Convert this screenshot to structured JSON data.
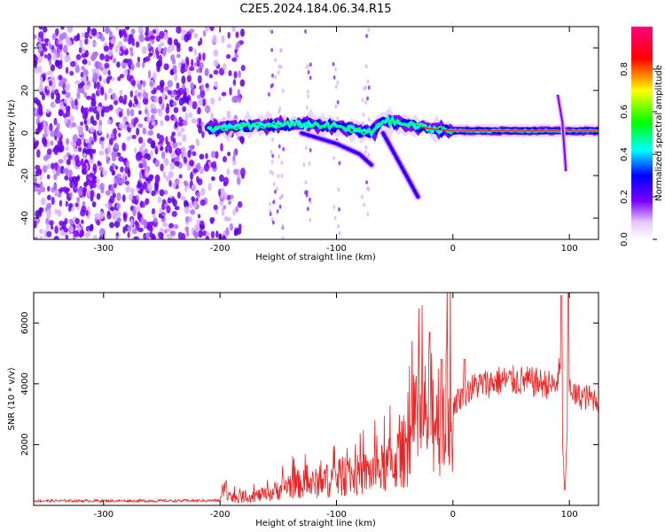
{
  "title": "C2E5.2024.184.06.34.R15",
  "chart_data": [
    {
      "type": "heatmap",
      "title": "C2E5.2024.184.06.34.R15",
      "xlabel": "Height of straight line (km)",
      "ylabel": "Frequency (Hz)",
      "xlim": [
        -360,
        125
      ],
      "ylim": [
        -50,
        50
      ],
      "xticks": [
        -300,
        -200,
        -100,
        0,
        100
      ],
      "xtick_labels": [
        "-300",
        "-200",
        "-100",
        "0",
        "100"
      ],
      "yticks": [
        -40,
        -20,
        0,
        20,
        40
      ],
      "ytick_labels": [
        "-40",
        "-20",
        "0",
        "20",
        "40"
      ],
      "colorbar": {
        "label": "Normalized spectral amplitude",
        "range": [
          0,
          1
        ],
        "ticks": [
          0.0,
          0.2,
          0.4,
          0.6,
          0.8
        ],
        "tick_labels": [
          "0.0",
          "0.2",
          "0.4",
          "0.6",
          "0.8"
        ],
        "colormap": [
          "#ffffff",
          "#7a00ff",
          "#0000ff",
          "#00ffff",
          "#00ff00",
          "#ffff00",
          "#ff0000",
          "#ff00aa"
        ]
      },
      "noise_region_x": [
        -360,
        -180
      ],
      "main_trace": [
        {
          "x": -210,
          "f": 2
        },
        {
          "x": -180,
          "f": 3
        },
        {
          "x": -150,
          "f": 4
        },
        {
          "x": -120,
          "f": 4
        },
        {
          "x": -100,
          "f": 3
        },
        {
          "x": -80,
          "f": 1
        },
        {
          "x": -70,
          "f": 0
        },
        {
          "x": -60,
          "f": 6
        },
        {
          "x": -40,
          "f": 4
        },
        {
          "x": -20,
          "f": 2
        },
        {
          "x": 0,
          "f": 1
        },
        {
          "x": 40,
          "f": 1
        },
        {
          "x": 80,
          "f": 1
        },
        {
          "x": 100,
          "f": 1
        },
        {
          "x": 125,
          "f": 1
        }
      ],
      "branch_traces": [
        [
          {
            "x": -130,
            "f": 0
          },
          {
            "x": -100,
            "f": -5
          },
          {
            "x": -80,
            "f": -10
          },
          {
            "x": -70,
            "f": -15
          }
        ],
        [
          {
            "x": -60,
            "f": 0
          },
          {
            "x": -50,
            "f": -10
          },
          {
            "x": -40,
            "f": -20
          },
          {
            "x": -30,
            "f": -30
          }
        ]
      ]
    },
    {
      "type": "line",
      "xlabel": "Height of straight line (km)",
      "ylabel": "SNR (10 * v/v)",
      "xlim": [
        -360,
        125
      ],
      "ylim": [
        0,
        7000
      ],
      "xticks": [
        -300,
        -200,
        -100,
        0,
        100
      ],
      "xtick_labels": [
        "-300",
        "-200",
        "-100",
        "0",
        "100"
      ],
      "yticks": [
        2000,
        4000,
        6000
      ],
      "ytick_labels": [
        "2000",
        "4000",
        "6000"
      ],
      "color": "#ee2222",
      "envelope": [
        {
          "x": -360,
          "y": 150
        },
        {
          "x": -250,
          "y": 150
        },
        {
          "x": -200,
          "y": 160
        },
        {
          "x": -195,
          "y": 600
        },
        {
          "x": -190,
          "y": 250
        },
        {
          "x": -160,
          "y": 350
        },
        {
          "x": -140,
          "y": 700
        },
        {
          "x": -120,
          "y": 700
        },
        {
          "x": -100,
          "y": 900
        },
        {
          "x": -80,
          "y": 1000
        },
        {
          "x": -60,
          "y": 1200
        },
        {
          "x": -45,
          "y": 1600
        },
        {
          "x": -30,
          "y": 2600
        },
        {
          "x": -20,
          "y": 3000
        },
        {
          "x": -10,
          "y": 3000
        },
        {
          "x": 0,
          "y": 3300
        },
        {
          "x": 10,
          "y": 3700
        },
        {
          "x": 20,
          "y": 3950
        },
        {
          "x": 40,
          "y": 4100
        },
        {
          "x": 60,
          "y": 4100
        },
        {
          "x": 80,
          "y": 4000
        },
        {
          "x": 88,
          "y": 3900
        },
        {
          "x": 92,
          "y": 4500
        },
        {
          "x": 96,
          "y": 300
        },
        {
          "x": 100,
          "y": 4000
        },
        {
          "x": 105,
          "y": 3600
        },
        {
          "x": 125,
          "y": 3500
        }
      ],
      "peaks": [
        {
          "x": -195,
          "y": 800
        },
        {
          "x": -20,
          "y": 5700
        },
        {
          "x": -10,
          "y": 4800
        },
        {
          "x": 10,
          "y": 4800
        },
        {
          "x": 93,
          "y": 6900
        },
        {
          "x": 99,
          "y": 7000
        }
      ]
    }
  ]
}
